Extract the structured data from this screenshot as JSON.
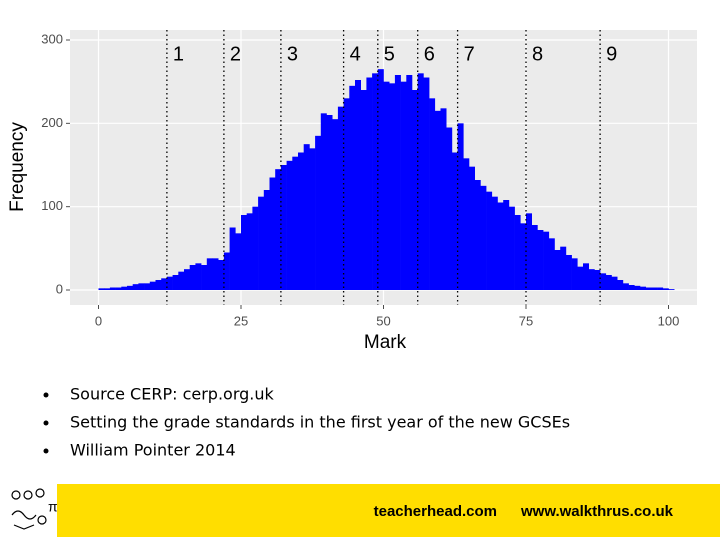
{
  "chart_data": {
    "type": "histogram",
    "x_label": "Mark",
    "y_label": "Frequency",
    "bins": [
      0,
      1,
      2,
      3,
      4,
      5,
      6,
      7,
      8,
      9,
      10,
      11,
      12,
      13,
      14,
      15,
      16,
      17,
      18,
      19,
      20,
      21,
      22,
      23,
      24,
      25,
      26,
      27,
      28,
      29,
      30,
      31,
      32,
      33,
      34,
      35,
      36,
      37,
      38,
      39,
      40,
      41,
      42,
      43,
      44,
      45,
      46,
      47,
      48,
      49,
      50,
      51,
      52,
      53,
      54,
      55,
      56,
      57,
      58,
      59,
      60,
      61,
      62,
      63,
      64,
      65,
      66,
      67,
      68,
      69,
      70,
      71,
      72,
      73,
      74,
      75,
      76,
      77,
      78,
      79,
      80,
      81,
      82,
      83,
      84,
      85,
      86,
      87,
      88,
      89,
      90,
      91,
      92,
      93,
      94,
      95,
      96,
      97,
      98,
      99,
      100,
      101
    ],
    "counts": [
      2,
      2,
      3,
      3,
      4,
      5,
      7,
      8,
      8,
      10,
      12,
      14,
      16,
      18,
      22,
      25,
      30,
      32,
      30,
      38,
      38,
      36,
      45,
      75,
      68,
      90,
      92,
      100,
      112,
      120,
      135,
      145,
      150,
      155,
      160,
      165,
      175,
      170,
      185,
      212,
      210,
      205,
      220,
      230,
      245,
      252,
      240,
      255,
      260,
      265,
      250,
      248,
      258,
      250,
      258,
      240,
      260,
      255,
      230,
      215,
      218,
      195,
      165,
      200,
      158,
      148,
      132,
      125,
      118,
      112,
      105,
      108,
      100,
      90,
      80,
      92,
      78,
      72,
      70,
      62,
      48,
      52,
      42,
      38,
      28,
      32,
      25,
      24,
      20,
      18,
      16,
      12,
      8,
      6,
      5,
      4,
      3,
      3,
      3,
      2,
      1
    ],
    "color": "#0000ff",
    "xlim": [
      -5,
      105
    ],
    "xticks": [
      0,
      25,
      50,
      75,
      100
    ],
    "ylim": [
      -18,
      312
    ],
    "yticks": [
      0,
      100,
      200,
      300
    ],
    "grid": true,
    "grade_lines": [
      {
        "x": 12,
        "label": "1"
      },
      {
        "x": 22,
        "label": "2"
      },
      {
        "x": 32,
        "label": "3"
      },
      {
        "x": 43,
        "label": "4"
      },
      {
        "x": 49,
        "label": "5"
      },
      {
        "x": 56,
        "label": "6"
      },
      {
        "x": 63,
        "label": "7"
      },
      {
        "x": 75,
        "label": "8"
      },
      {
        "x": 88,
        "label": "9"
      }
    ]
  },
  "bullets": [
    "Source CERP: cerp.org.uk",
    "Setting the grade standards in the first year of the new GCSEs",
    "William Pointer 2014"
  ],
  "footer": {
    "left": "teacherhead.com",
    "right": "www.walkthrus.co.uk"
  }
}
